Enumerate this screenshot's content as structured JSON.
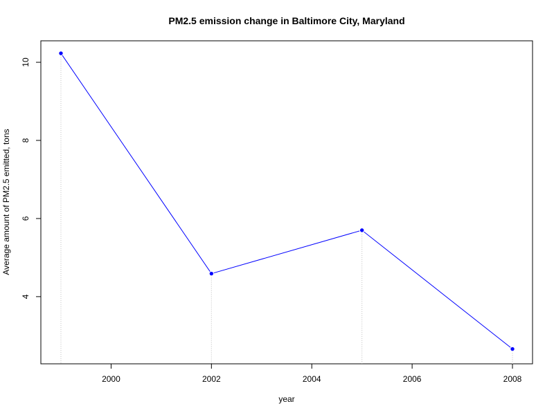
{
  "chart_data": {
    "type": "line",
    "title": "PM2.5 emission change in Baltimore City, Maryland",
    "xlabel": "year",
    "ylabel": "Average amount of PM2.5 emitted, tons",
    "x": [
      1999,
      2002,
      2005,
      2008
    ],
    "series": [
      {
        "values": [
          10.23,
          4.59,
          5.7,
          2.66
        ]
      }
    ],
    "xlim": [
      1998.6,
      2008.4
    ],
    "ylim": [
      2.28,
      10.55
    ],
    "xticks": [
      2000,
      2002,
      2004,
      2006,
      2008
    ],
    "yticks": [
      4,
      6,
      8,
      10
    ],
    "drop_lines": true,
    "grid": false,
    "colors": {
      "line": "#0000ff",
      "points": "#0000ff",
      "drop_lines": "#bebebe",
      "frame": "#000000"
    }
  }
}
